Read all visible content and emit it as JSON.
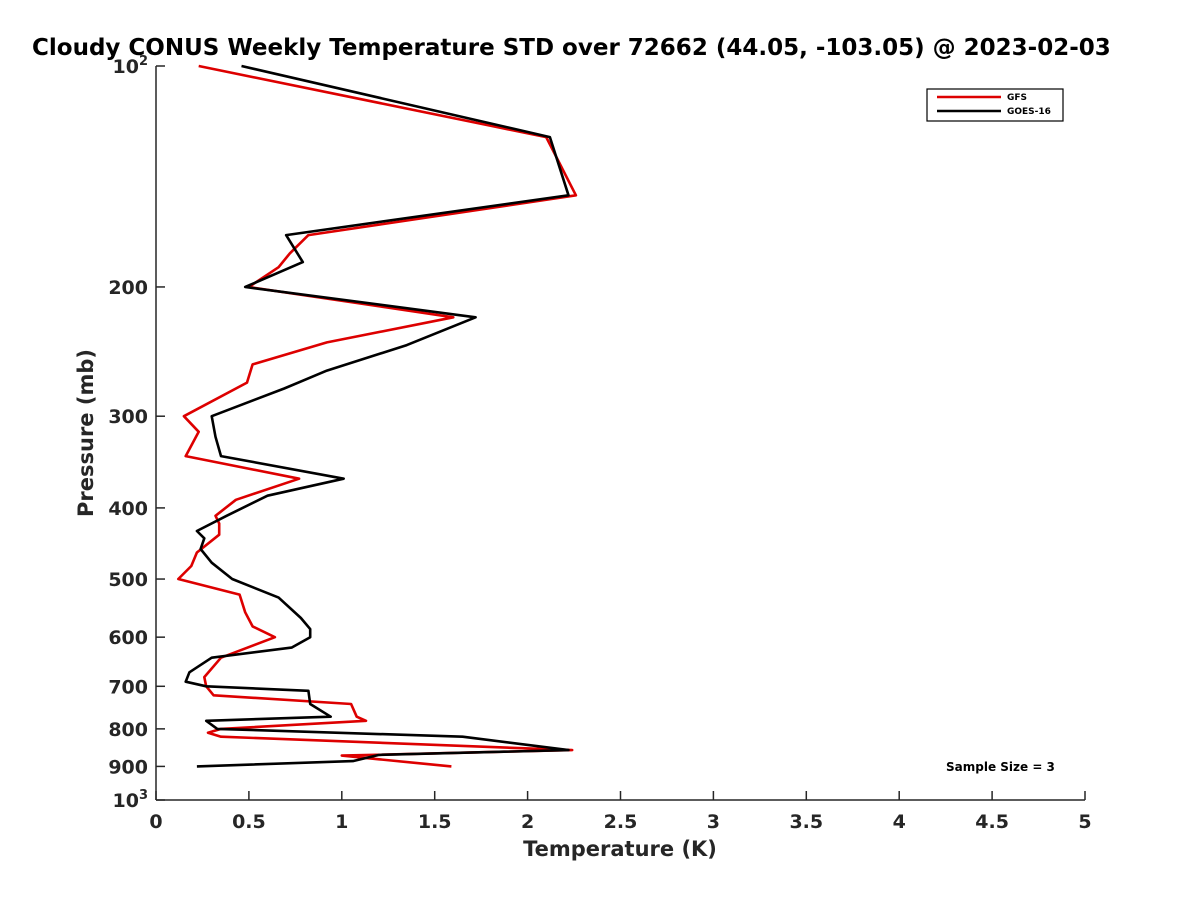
{
  "chart_data": {
    "type": "line",
    "title": "Cloudy CONUS Weekly Temperature STD over 72662 (44.05, -103.05) @ 2023-02-03",
    "xlabel": "Temperature (K)",
    "ylabel": "Pressure (mb)",
    "xlim": [
      0,
      5
    ],
    "ylim": [
      100,
      1000
    ],
    "y_scale": "log",
    "y_reversed": true,
    "x_ticks": [
      0,
      0.5,
      1,
      1.5,
      2,
      2.5,
      3,
      3.5,
      4,
      4.5,
      5
    ],
    "x_tick_labels": [
      "0",
      "0.5",
      "1",
      "1.5",
      "2",
      "2.5",
      "3",
      "3.5",
      "4",
      "4.5",
      "5"
    ],
    "y_ticks": [
      {
        "value": 100,
        "base": "10",
        "exp": "2",
        "label": ""
      },
      {
        "value": 200,
        "label": "200"
      },
      {
        "value": 300,
        "label": "300"
      },
      {
        "value": 400,
        "label": "400"
      },
      {
        "value": 500,
        "label": "500"
      },
      {
        "value": 600,
        "label": "600"
      },
      {
        "value": 700,
        "label": "700"
      },
      {
        "value": 800,
        "label": "800"
      },
      {
        "value": 900,
        "label": "900"
      },
      {
        "value": 1000,
        "base": "10",
        "exp": "3",
        "label": ""
      }
    ],
    "grid": false,
    "legend_position": "top-right",
    "annotation": "Sample Size = 3",
    "series": [
      {
        "name": "GFS",
        "color": "#dd0000",
        "points": [
          [
            0.23,
            100
          ],
          [
            2.1,
            125
          ],
          [
            2.26,
            150
          ],
          [
            0.82,
            170
          ],
          [
            0.72,
            180
          ],
          [
            0.66,
            188
          ],
          [
            0.5,
            200
          ],
          [
            1.6,
            220
          ],
          [
            0.92,
            238
          ],
          [
            0.52,
            255
          ],
          [
            0.49,
            270
          ],
          [
            0.15,
            300
          ],
          [
            0.23,
            315
          ],
          [
            0.16,
            340
          ],
          [
            0.77,
            365
          ],
          [
            0.43,
            390
          ],
          [
            0.32,
            410
          ],
          [
            0.34,
            420
          ],
          [
            0.34,
            435
          ],
          [
            0.22,
            460
          ],
          [
            0.19,
            480
          ],
          [
            0.12,
            500
          ],
          [
            0.45,
            525
          ],
          [
            0.48,
            555
          ],
          [
            0.52,
            580
          ],
          [
            0.64,
            600
          ],
          [
            0.35,
            640
          ],
          [
            0.26,
            680
          ],
          [
            0.27,
            700
          ],
          [
            0.31,
            720
          ],
          [
            1.05,
            740
          ],
          [
            1.08,
            770
          ],
          [
            1.13,
            780
          ],
          [
            0.35,
            800
          ],
          [
            0.28,
            810
          ],
          [
            0.35,
            820
          ],
          [
            2.24,
            855
          ],
          [
            1.0,
            870
          ],
          [
            1.2,
            880
          ],
          [
            1.59,
            900
          ]
        ]
      },
      {
        "name": "GOES-16",
        "color": "#000000",
        "points": [
          [
            0.46,
            100
          ],
          [
            2.12,
            125
          ],
          [
            2.22,
            150
          ],
          [
            0.7,
            170
          ],
          [
            0.79,
            185
          ],
          [
            0.48,
            200
          ],
          [
            1.72,
            220
          ],
          [
            1.35,
            240
          ],
          [
            0.92,
            260
          ],
          [
            0.69,
            275
          ],
          [
            0.3,
            300
          ],
          [
            0.32,
            320
          ],
          [
            0.35,
            340
          ],
          [
            1.01,
            365
          ],
          [
            0.6,
            385
          ],
          [
            0.38,
            410
          ],
          [
            0.22,
            430
          ],
          [
            0.26,
            440
          ],
          [
            0.24,
            455
          ],
          [
            0.3,
            475
          ],
          [
            0.41,
            500
          ],
          [
            0.66,
            530
          ],
          [
            0.78,
            565
          ],
          [
            0.83,
            585
          ],
          [
            0.83,
            600
          ],
          [
            0.73,
            620
          ],
          [
            0.3,
            640
          ],
          [
            0.18,
            670
          ],
          [
            0.16,
            690
          ],
          [
            0.27,
            700
          ],
          [
            0.82,
            710
          ],
          [
            0.83,
            740
          ],
          [
            0.94,
            770
          ],
          [
            0.27,
            780
          ],
          [
            0.33,
            800
          ],
          [
            1.65,
            820
          ],
          [
            2.22,
            855
          ],
          [
            1.2,
            868
          ],
          [
            1.06,
            885
          ],
          [
            0.22,
            900
          ]
        ]
      }
    ]
  }
}
